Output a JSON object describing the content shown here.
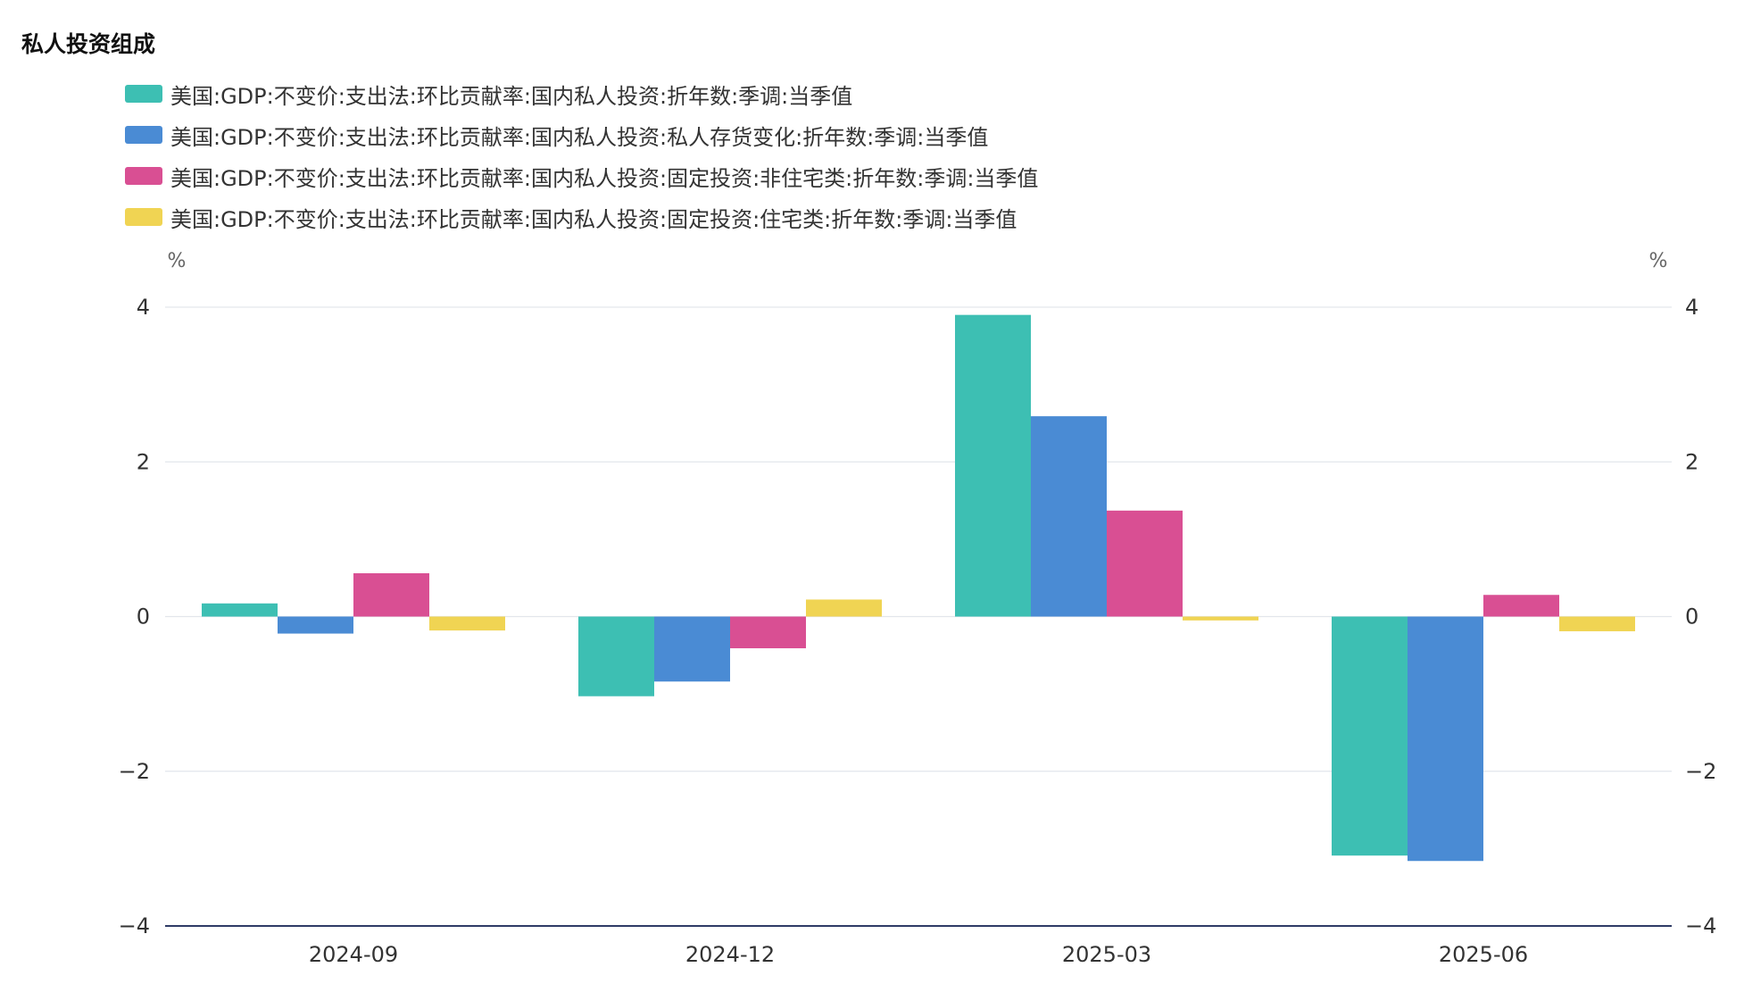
{
  "title": "私人投资组成",
  "chart_data": {
    "type": "bar",
    "title": "私人投资组成",
    "categories": [
      "2024-09",
      "2024-12",
      "2025-03",
      "2025-06"
    ],
    "series": [
      {
        "name": "美国:GDP:不变价:支出法:环比贡献率:国内私人投资:折年数:季调:当季值",
        "color": "#3dbfb3",
        "values": [
          0.17,
          -1.03,
          3.9,
          -3.09
        ]
      },
      {
        "name": "美国:GDP:不变价:支出法:环比贡献率:国内私人投资:私人存货变化:折年数:季调:当季值",
        "color": "#4a8bd4",
        "values": [
          -0.22,
          -0.84,
          2.59,
          -3.16
        ]
      },
      {
        "name": "美国:GDP:不变价:支出法:环比贡献率:国内私人投资:固定投资:非住宅类:折年数:季调:当季值",
        "color": "#d94f93",
        "values": [
          0.56,
          -0.41,
          1.37,
          0.28
        ]
      },
      {
        "name": "美国:GDP:不变价:支出法:环比贡献率:国内私人投资:固定投资:住宅类:折年数:季调:当季值",
        "color": "#f0d453",
        "values": [
          -0.18,
          0.22,
          -0.05,
          -0.19
        ]
      }
    ],
    "ylim": [
      -4,
      4
    ],
    "yticks": [
      4,
      2,
      0,
      -2,
      -4
    ],
    "ytick_labels": [
      "4",
      "2",
      "0",
      "−2",
      "−4"
    ],
    "y_unit_left": "%",
    "y_unit_right": "%",
    "grid": true,
    "legend_position": "top-left"
  }
}
